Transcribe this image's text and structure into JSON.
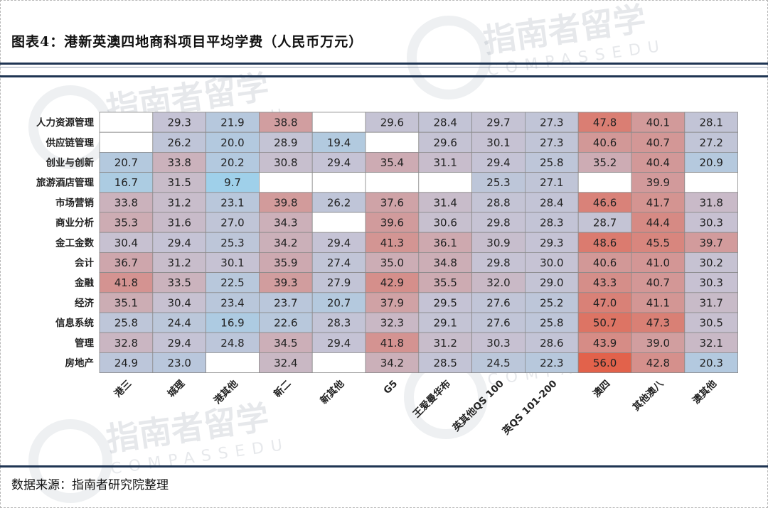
{
  "title": "图表4：港新英澳四地商科项目平均学费（人民币万元）",
  "source": "数据来源：指南者研究院整理",
  "watermark": {
    "cn": "指南者留学",
    "en": "COMPASSEDU"
  },
  "chart_data": {
    "type": "heatmap",
    "title": "图表4：港新英澳四地商科项目平均学费（人民币万元）",
    "rows": [
      "人力资源管理",
      "供应链管理",
      "创业与创新",
      "旅游酒店管理",
      "市场营销",
      "商业分析",
      "金工金数",
      "会计",
      "金融",
      "经济",
      "信息系统",
      "管理",
      "房地产"
    ],
    "columns": [
      "港三",
      "城理",
      "港其他",
      "新二",
      "新其他",
      "G5",
      "王爱曼华布",
      "英其他QS 100",
      "英QS 101-200",
      "澳四",
      "其他澳八",
      "澳其他"
    ],
    "values": [
      [
        null,
        29.3,
        21.9,
        38.8,
        null,
        29.6,
        28.4,
        29.7,
        27.3,
        47.8,
        40.1,
        28.1
      ],
      [
        null,
        26.2,
        20.0,
        28.9,
        19.4,
        null,
        29.6,
        30.1,
        27.3,
        40.6,
        40.7,
        27.2
      ],
      [
        20.7,
        33.8,
        20.2,
        30.8,
        29.4,
        35.4,
        31.1,
        29.4,
        25.8,
        35.2,
        40.4,
        20.9
      ],
      [
        16.7,
        31.5,
        9.7,
        null,
        null,
        null,
        null,
        25.3,
        27.1,
        null,
        39.9,
        null
      ],
      [
        33.8,
        31.2,
        23.1,
        39.8,
        26.2,
        37.6,
        31.4,
        28.8,
        28.4,
        46.6,
        41.7,
        31.8
      ],
      [
        35.3,
        31.6,
        27.0,
        34.3,
        null,
        39.6,
        30.6,
        29.8,
        28.3,
        28.7,
        44.4,
        30.3
      ],
      [
        30.4,
        29.4,
        25.3,
        34.2,
        29.4,
        41.3,
        36.1,
        30.9,
        29.3,
        48.6,
        45.5,
        39.7
      ],
      [
        36.7,
        31.2,
        30.1,
        35.9,
        27.4,
        35.0,
        34.8,
        29.8,
        30.0,
        40.6,
        41.0,
        30.2
      ],
      [
        41.8,
        33.5,
        22.5,
        39.3,
        27.9,
        42.9,
        35.5,
        32.0,
        29.0,
        43.3,
        40.7,
        30.3
      ],
      [
        35.1,
        30.4,
        23.4,
        23.7,
        20.7,
        37.9,
        29.5,
        27.6,
        25.2,
        47.0,
        41.1,
        31.7
      ],
      [
        25.8,
        24.4,
        16.9,
        22.6,
        28.3,
        32.3,
        29.1,
        27.6,
        25.8,
        50.7,
        47.3,
        30.5
      ],
      [
        32.8,
        29.4,
        24.8,
        34.5,
        29.4,
        41.8,
        31.2,
        30.3,
        28.6,
        43.9,
        39.0,
        32.1
      ],
      [
        24.9,
        23.0,
        null,
        32.4,
        null,
        34.2,
        28.5,
        24.5,
        22.3,
        56.0,
        42.8,
        20.3
      ]
    ],
    "color_scale": {
      "low": "#9fd0ea",
      "mid": "#c6c3d4",
      "high": "#e2624b"
    }
  }
}
